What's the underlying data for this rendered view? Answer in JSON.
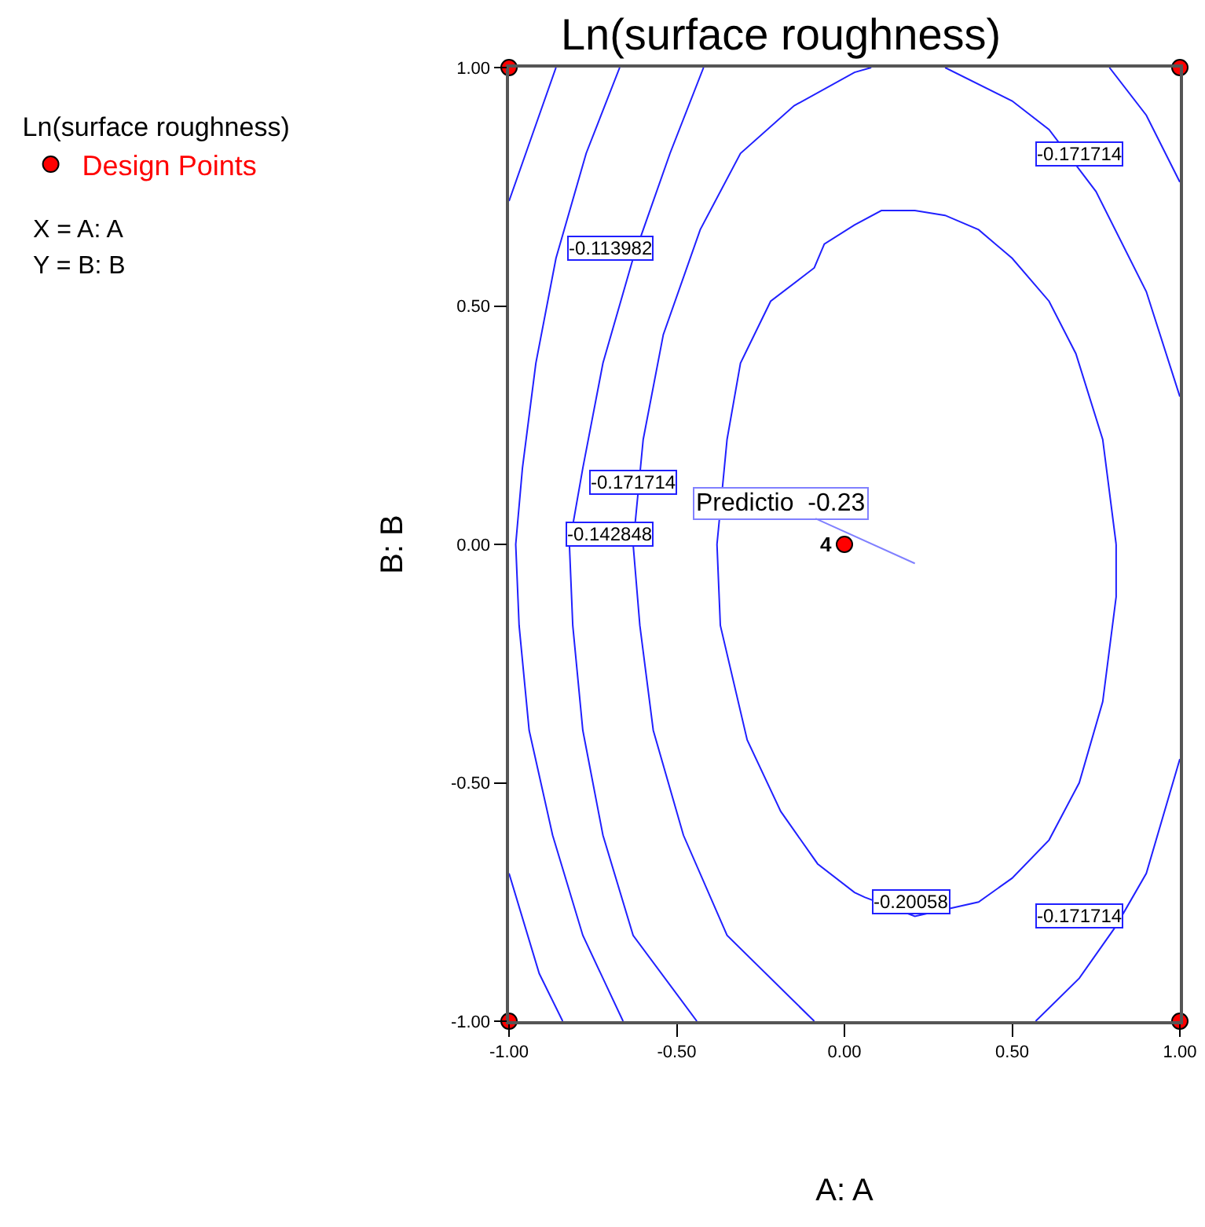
{
  "chart_data": {
    "type": "line",
    "title": "Ln(surface roughness)",
    "xlabel": "A: A",
    "ylabel": "B: B",
    "legend_title": "Ln(surface roughness)",
    "legend": "top left",
    "grid": false,
    "xlim": [
      -1,
      1
    ],
    "ylim": [
      -1,
      1
    ],
    "xticks": [
      {
        "value": -1,
        "label": "-1.00"
      },
      {
        "value": -0.5,
        "label": "-0.50"
      },
      {
        "value": 0,
        "label": "0.00"
      },
      {
        "value": 0.5,
        "label": "0.50"
      },
      {
        "value": 1,
        "label": "1.00"
      }
    ],
    "yticks": [
      {
        "value": -1,
        "label": "-1.00"
      },
      {
        "value": -0.5,
        "label": "-0.50"
      },
      {
        "value": 0,
        "label": "0.00"
      },
      {
        "value": 0.5,
        "label": "0.50"
      },
      {
        "value": 1,
        "label": "1.00"
      }
    ],
    "series": [
      {
        "color": "#2020ff",
        "x": [
          -0.86,
          -0.93,
          -1,
          null,
          -1,
          -0.91,
          -0.84,
          null,
          0.79,
          0.9,
          1
        ],
        "values": [
          1,
          0.86,
          0.72,
          null,
          -0.69,
          -0.9,
          -1,
          null,
          1,
          0.9,
          0.76
        ]
      },
      {
        "color": "#2020ff",
        "x": [
          -0.67,
          -0.77,
          -0.86,
          -0.92,
          -0.96,
          -0.98,
          -0.97,
          -0.94,
          -0.87,
          -0.78,
          -0.66
        ],
        "values": [
          1,
          0.82,
          0.6,
          0.38,
          0.16,
          0,
          -0.17,
          -0.39,
          -0.61,
          -0.82,
          -1
        ]
      },
      {
        "color": "#2020ff",
        "x": [
          -0.42,
          -0.52,
          -0.63,
          -0.72,
          -0.78,
          -0.82,
          -0.81,
          -0.78,
          -0.72,
          -0.63,
          -0.44
        ],
        "values": [
          1,
          0.82,
          0.6,
          0.38,
          0.16,
          0,
          -0.17,
          -0.39,
          -0.61,
          -0.82,
          -1
        ]
      },
      {
        "color": "#2020ff",
        "x": [
          0.08,
          0.03,
          -0.15,
          -0.31,
          -0.43,
          -0.54,
          -0.6,
          -0.63,
          -0.61,
          -0.57,
          -0.48,
          -0.35,
          -0.09,
          null,
          0.3,
          0.5,
          0.61,
          0.75,
          0.9,
          1,
          null,
          1,
          0.9,
          0.81,
          0.7,
          0.57
        ],
        "values": [
          1,
          0.99,
          0.92,
          0.82,
          0.66,
          0.44,
          0.22,
          0,
          -0.17,
          -0.39,
          -0.61,
          -0.82,
          -1,
          null,
          1,
          0.93,
          0.87,
          0.74,
          0.53,
          0.31,
          null,
          -0.45,
          -0.69,
          -0.8,
          -0.91,
          -1
        ]
      },
      {
        "color": "#2020ff",
        "x": [
          -0.38,
          -0.35,
          -0.31,
          -0.22,
          -0.09,
          -0.06,
          0.03,
          0.11,
          0.21,
          0.3,
          0.4,
          0.5,
          0.61,
          0.69,
          0.77,
          0.81,
          null,
          -0.38,
          -0.37,
          -0.29,
          -0.19,
          -0.08,
          0.03,
          0.06,
          0.21,
          0.4,
          0.5,
          0.61,
          0.7,
          0.77,
          0.81,
          0.81
        ],
        "values": [
          0,
          0.22,
          0.38,
          0.51,
          0.58,
          0.63,
          0.67,
          0.7,
          0.7,
          0.69,
          0.66,
          0.6,
          0.51,
          0.4,
          0.22,
          0,
          null,
          0,
          -0.17,
          -0.41,
          -0.56,
          -0.67,
          -0.73,
          -0.74,
          -0.78,
          -0.75,
          -0.7,
          -0.62,
          -0.5,
          -0.33,
          -0.11,
          0
        ]
      },
      {
        "type": "scatter",
        "name": "Design Points",
        "color": "#ff0000",
        "marker": "circle",
        "x": [
          -1,
          1,
          -1,
          1,
          0
        ],
        "values": [
          -1,
          -1,
          1,
          1,
          0
        ]
      }
    ],
    "annotations": [
      "-0.113982",
      "-0.171714",
      "-0.142848",
      "-0.171714",
      "-0.171714",
      "-0.20058",
      "Predictio  -0.23",
      {
        "text": "4",
        "x": 0,
        "y": 0
      },
      "X = A: A",
      "Y = B: B"
    ]
  }
}
